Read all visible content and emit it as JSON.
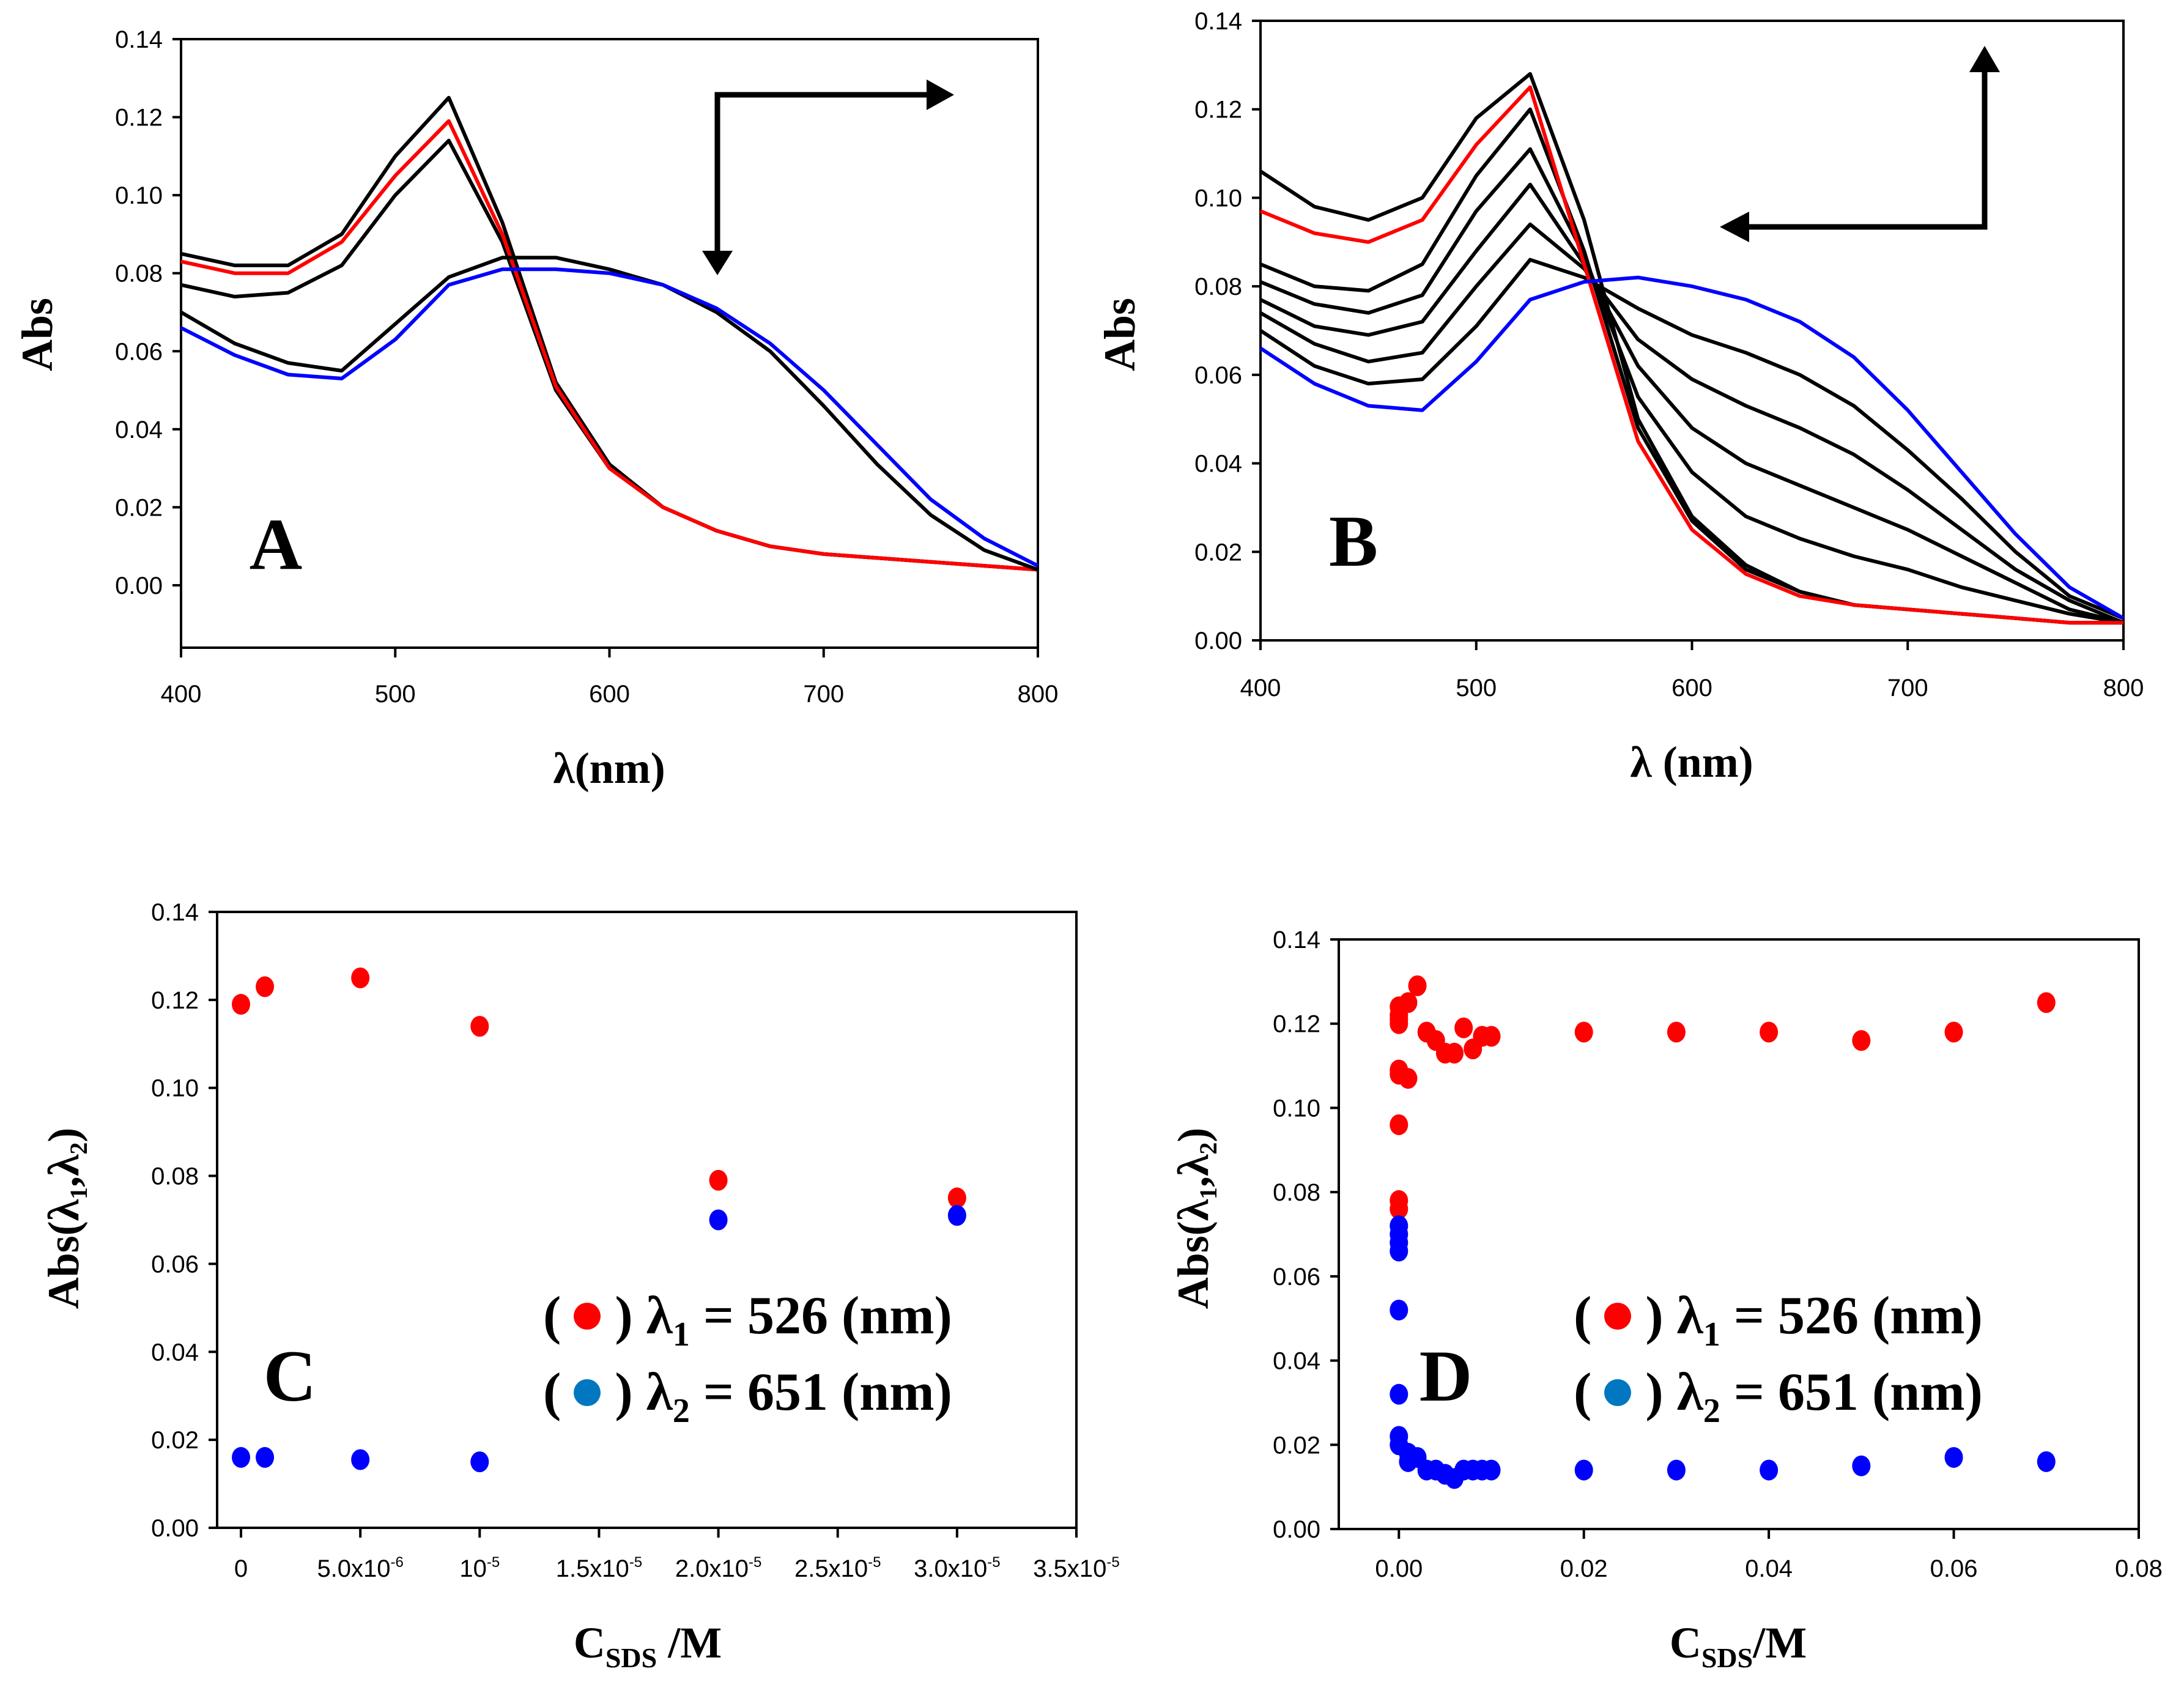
{
  "chart_data": [
    {
      "panel": "A",
      "type": "line",
      "xlabel": "λ(nm)",
      "ylabel": "Abs",
      "xlim": [
        400,
        800
      ],
      "ylim": [
        -0.016,
        0.14
      ],
      "xticks": [
        400,
        500,
        600,
        700,
        800
      ],
      "yticks": [
        "0.00",
        "0.02",
        "0.04",
        "0.06",
        "0.08",
        "0.10",
        "0.12",
        "0.14"
      ],
      "x": [
        400,
        425,
        450,
        475,
        500,
        525,
        550,
        575,
        600,
        625,
        650,
        675,
        700,
        725,
        750,
        775,
        800
      ],
      "series": [
        {
          "name": "black-1",
          "color": "#000000",
          "values": [
            0.085,
            0.082,
            0.082,
            0.09,
            0.11,
            0.125,
            0.093,
            0.052,
            0.031,
            0.02,
            0.014,
            0.01,
            0.008,
            0.007,
            0.006,
            0.005,
            0.004
          ]
        },
        {
          "name": "black-2",
          "color": "#000000",
          "values": [
            0.077,
            0.074,
            0.075,
            0.082,
            0.1,
            0.114,
            0.088,
            0.05,
            0.03,
            0.02,
            0.014,
            0.01,
            0.008,
            0.007,
            0.006,
            0.005,
            0.004
          ]
        },
        {
          "name": "red",
          "color": "#ff0000",
          "values": [
            0.083,
            0.08,
            0.08,
            0.088,
            0.105,
            0.119,
            0.09,
            0.051,
            0.03,
            0.02,
            0.014,
            0.01,
            0.008,
            0.007,
            0.006,
            0.005,
            0.004
          ]
        },
        {
          "name": "black-3",
          "color": "#000000",
          "values": [
            0.07,
            0.062,
            0.057,
            0.055,
            0.067,
            0.079,
            0.084,
            0.084,
            0.081,
            0.077,
            0.07,
            0.06,
            0.046,
            0.031,
            0.018,
            0.009,
            0.004
          ]
        },
        {
          "name": "blue",
          "color": "#0000ff",
          "values": [
            0.066,
            0.059,
            0.054,
            0.053,
            0.063,
            0.077,
            0.081,
            0.081,
            0.08,
            0.077,
            0.071,
            0.062,
            0.05,
            0.036,
            0.022,
            0.012,
            0.005
          ]
        }
      ],
      "label": "A"
    },
    {
      "panel": "B",
      "type": "line",
      "xlabel": "λ (nm)",
      "ylabel": "Abs",
      "xlim": [
        400,
        800
      ],
      "ylim": [
        0,
        0.14
      ],
      "xticks": [
        400,
        500,
        600,
        700,
        800
      ],
      "yticks": [
        "0.00",
        "0.02",
        "0.04",
        "0.06",
        "0.08",
        "0.10",
        "0.12",
        "0.14"
      ],
      "x": [
        400,
        425,
        450,
        475,
        500,
        525,
        550,
        575,
        600,
        625,
        650,
        675,
        700,
        725,
        750,
        775,
        800
      ],
      "series": [
        {
          "name": "black-top",
          "color": "#000000",
          "values": [
            0.106,
            0.098,
            0.095,
            0.1,
            0.118,
            0.128,
            0.095,
            0.05,
            0.028,
            0.017,
            0.011,
            0.008,
            0.007,
            0.006,
            0.005,
            0.004,
            0.004
          ]
        },
        {
          "name": "black-early",
          "color": "#000000",
          "values": [
            0.085,
            0.08,
            0.079,
            0.085,
            0.105,
            0.12,
            0.088,
            0.048,
            0.027,
            0.016,
            0.011,
            0.008,
            0.007,
            0.006,
            0.005,
            0.004,
            0.004
          ]
        },
        {
          "name": "black-m1",
          "color": "#000000",
          "values": [
            0.081,
            0.076,
            0.074,
            0.078,
            0.097,
            0.111,
            0.087,
            0.055,
            0.038,
            0.028,
            0.023,
            0.019,
            0.016,
            0.012,
            0.009,
            0.006,
            0.004
          ]
        },
        {
          "name": "black-m2",
          "color": "#000000",
          "values": [
            0.077,
            0.071,
            0.069,
            0.072,
            0.088,
            0.103,
            0.085,
            0.062,
            0.048,
            0.04,
            0.035,
            0.03,
            0.025,
            0.019,
            0.013,
            0.007,
            0.004
          ]
        },
        {
          "name": "black-m3",
          "color": "#000000",
          "values": [
            0.074,
            0.067,
            0.063,
            0.065,
            0.08,
            0.094,
            0.084,
            0.068,
            0.059,
            0.053,
            0.048,
            0.042,
            0.034,
            0.025,
            0.016,
            0.009,
            0.004
          ]
        },
        {
          "name": "black-m4",
          "color": "#000000",
          "values": [
            0.07,
            0.062,
            0.058,
            0.059,
            0.071,
            0.086,
            0.082,
            0.075,
            0.069,
            0.065,
            0.06,
            0.053,
            0.043,
            0.032,
            0.02,
            0.01,
            0.005
          ]
        },
        {
          "name": "red",
          "color": "#ff0000",
          "values": [
            0.097,
            0.092,
            0.09,
            0.095,
            0.112,
            0.125,
            0.085,
            0.045,
            0.025,
            0.015,
            0.01,
            0.008,
            0.007,
            0.006,
            0.005,
            0.004,
            0.004
          ]
        },
        {
          "name": "blue",
          "color": "#0000ff",
          "values": [
            0.066,
            0.058,
            0.053,
            0.052,
            0.063,
            0.077,
            0.081,
            0.082,
            0.08,
            0.077,
            0.072,
            0.064,
            0.052,
            0.038,
            0.024,
            0.012,
            0.005
          ]
        }
      ],
      "label": "B"
    },
    {
      "panel": "C",
      "type": "scatter",
      "xlabel_main": "C",
      "xlabel_sub": "SDS",
      "xlabel_tail": " /M",
      "ylabel_main": "Abs(λ",
      "ylabel_sub1": "1",
      "ylabel_mid": ",λ",
      "ylabel_sub2": "2",
      "ylabel_tail": ")",
      "xlim": [
        -1e-06,
        3.5e-05
      ],
      "ylim": [
        0,
        0.14
      ],
      "xticks": [
        {
          "v": 0,
          "base": "0",
          "exp": ""
        },
        {
          "v": 5e-06,
          "base": "5.0x10",
          "exp": "-6"
        },
        {
          "v": 1e-05,
          "base": "10",
          "exp": "-5"
        },
        {
          "v": 1.5e-05,
          "base": "1.5x10",
          "exp": "-5"
        },
        {
          "v": 2e-05,
          "base": "2.0x10",
          "exp": "-5"
        },
        {
          "v": 2.5e-05,
          "base": "2.5x10",
          "exp": "-5"
        },
        {
          "v": 3e-05,
          "base": "3.0x10",
          "exp": "-5"
        },
        {
          "v": 3.5e-05,
          "base": "3.5x10",
          "exp": "-5"
        }
      ],
      "yticks": [
        "0.00",
        "0.02",
        "0.04",
        "0.06",
        "0.08",
        "0.10",
        "0.12",
        "0.14"
      ],
      "series": [
        {
          "name": "λ1 = 526 (nm)",
          "color": "#ff0000",
          "x": [
            0,
            1e-06,
            5e-06,
            1e-05,
            2e-05,
            3e-05
          ],
          "y": [
            0.119,
            0.123,
            0.125,
            0.114,
            0.079,
            0.075
          ]
        },
        {
          "name": "λ2 = 651 (nm)",
          "color": "#0000ff",
          "x": [
            0,
            1e-06,
            5e-06,
            1e-05,
            2e-05,
            3e-05
          ],
          "y": [
            0.016,
            0.016,
            0.0155,
            0.015,
            0.07,
            0.071
          ]
        }
      ],
      "legend": [
        {
          "open": "(",
          "close": ")",
          "lam": "λ",
          "sub": "1",
          "text": " = 526 (nm)",
          "color": "#ff0000"
        },
        {
          "open": "(",
          "close": ")",
          "lam": "λ",
          "sub": "2",
          "text": " = 651 (nm)",
          "color": "#0077c0"
        }
      ],
      "legend_placement": "center-right",
      "label": "C"
    },
    {
      "panel": "D",
      "type": "scatter",
      "xlabel_main": "C",
      "xlabel_sub": "SDS",
      "xlabel_tail": "/M",
      "ylabel_main": "Abs(λ",
      "ylabel_sub1": "1",
      "ylabel_mid": ",λ",
      "ylabel_sub2": "2",
      "ylabel_tail": ")",
      "xlim": [
        -0.0065,
        0.08
      ],
      "ylim": [
        0,
        0.14
      ],
      "xticks": [
        {
          "v": 0,
          "base": "0.00",
          "exp": ""
        },
        {
          "v": 0.02,
          "base": "0.02",
          "exp": ""
        },
        {
          "v": 0.04,
          "base": "0.04",
          "exp": ""
        },
        {
          "v": 0.06,
          "base": "0.06",
          "exp": ""
        },
        {
          "v": 0.08,
          "base": "0.08",
          "exp": ""
        }
      ],
      "yticks": [
        "0.00",
        "0.02",
        "0.04",
        "0.06",
        "0.08",
        "0.10",
        "0.12",
        "0.14"
      ],
      "series": [
        {
          "name": "λ1 = 526 (nm)",
          "color": "#ff0000",
          "x": [
            0,
            0,
            0,
            0,
            0,
            0,
            0,
            0,
            0,
            0.001,
            0.001,
            0.002,
            0.003,
            0.004,
            0.005,
            0.006,
            0.007,
            0.008,
            0.009,
            0.01,
            0.02,
            0.03,
            0.04,
            0.05,
            0.06,
            0.07
          ],
          "y": [
            0.076,
            0.078,
            0.096,
            0.108,
            0.109,
            0.12,
            0.121,
            0.122,
            0.124,
            0.107,
            0.125,
            0.129,
            0.118,
            0.116,
            0.113,
            0.113,
            0.119,
            0.114,
            0.117,
            0.117,
            0.118,
            0.118,
            0.118,
            0.116,
            0.118,
            0.125
          ]
        },
        {
          "name": "λ2 = 651 (nm)",
          "color": "#0000ff",
          "x": [
            0,
            0,
            0,
            0,
            0,
            0,
            0,
            0,
            0.001,
            0.001,
            0.002,
            0.003,
            0.004,
            0.005,
            0.006,
            0.007,
            0.008,
            0.009,
            0.01,
            0.02,
            0.03,
            0.04,
            0.05,
            0.06,
            0.07
          ],
          "y": [
            0.066,
            0.068,
            0.07,
            0.072,
            0.052,
            0.032,
            0.022,
            0.02,
            0.018,
            0.016,
            0.017,
            0.014,
            0.014,
            0.013,
            0.012,
            0.014,
            0.014,
            0.014,
            0.014,
            0.014,
            0.014,
            0.014,
            0.015,
            0.017,
            0.016
          ]
        }
      ],
      "legend": [
        {
          "open": "(",
          "close": ")",
          "lam": "λ",
          "sub": "1",
          "text": " = 526 (nm)",
          "color": "#ff0000"
        },
        {
          "open": "(",
          "close": ")",
          "lam": "λ",
          "sub": "2",
          "text": " = 651 (nm)",
          "color": "#0077c0"
        }
      ],
      "legend_placement": "center-right",
      "label": "D"
    }
  ]
}
